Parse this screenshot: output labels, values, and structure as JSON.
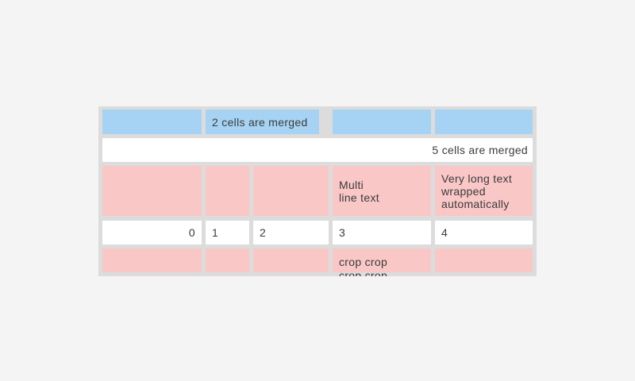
{
  "colors": {
    "page_background": "#f4f4f4",
    "table_background": "#dcdcdc",
    "header_blue": "#a6d3f3",
    "row_pink": "#fac7c7",
    "row_white": "#ffffff",
    "text": "#3b3b3b"
  },
  "table": {
    "row1": {
      "c1": "",
      "merged2": "2 cells are merged",
      "c4": "",
      "c5": ""
    },
    "row2": {
      "merged5": "5 cells are merged"
    },
    "row3": {
      "c1": "",
      "c2": "",
      "c3": "",
      "c4": "Multi\nline text",
      "c5": "Very long text wrapped automatically"
    },
    "row4": {
      "c1": "0",
      "c2": "1",
      "c3": "2",
      "c4": "3",
      "c5": "4"
    },
    "row5": {
      "c1": "",
      "c2": "",
      "c3": "",
      "c4": "crop crop crop crop",
      "c5": ""
    }
  }
}
